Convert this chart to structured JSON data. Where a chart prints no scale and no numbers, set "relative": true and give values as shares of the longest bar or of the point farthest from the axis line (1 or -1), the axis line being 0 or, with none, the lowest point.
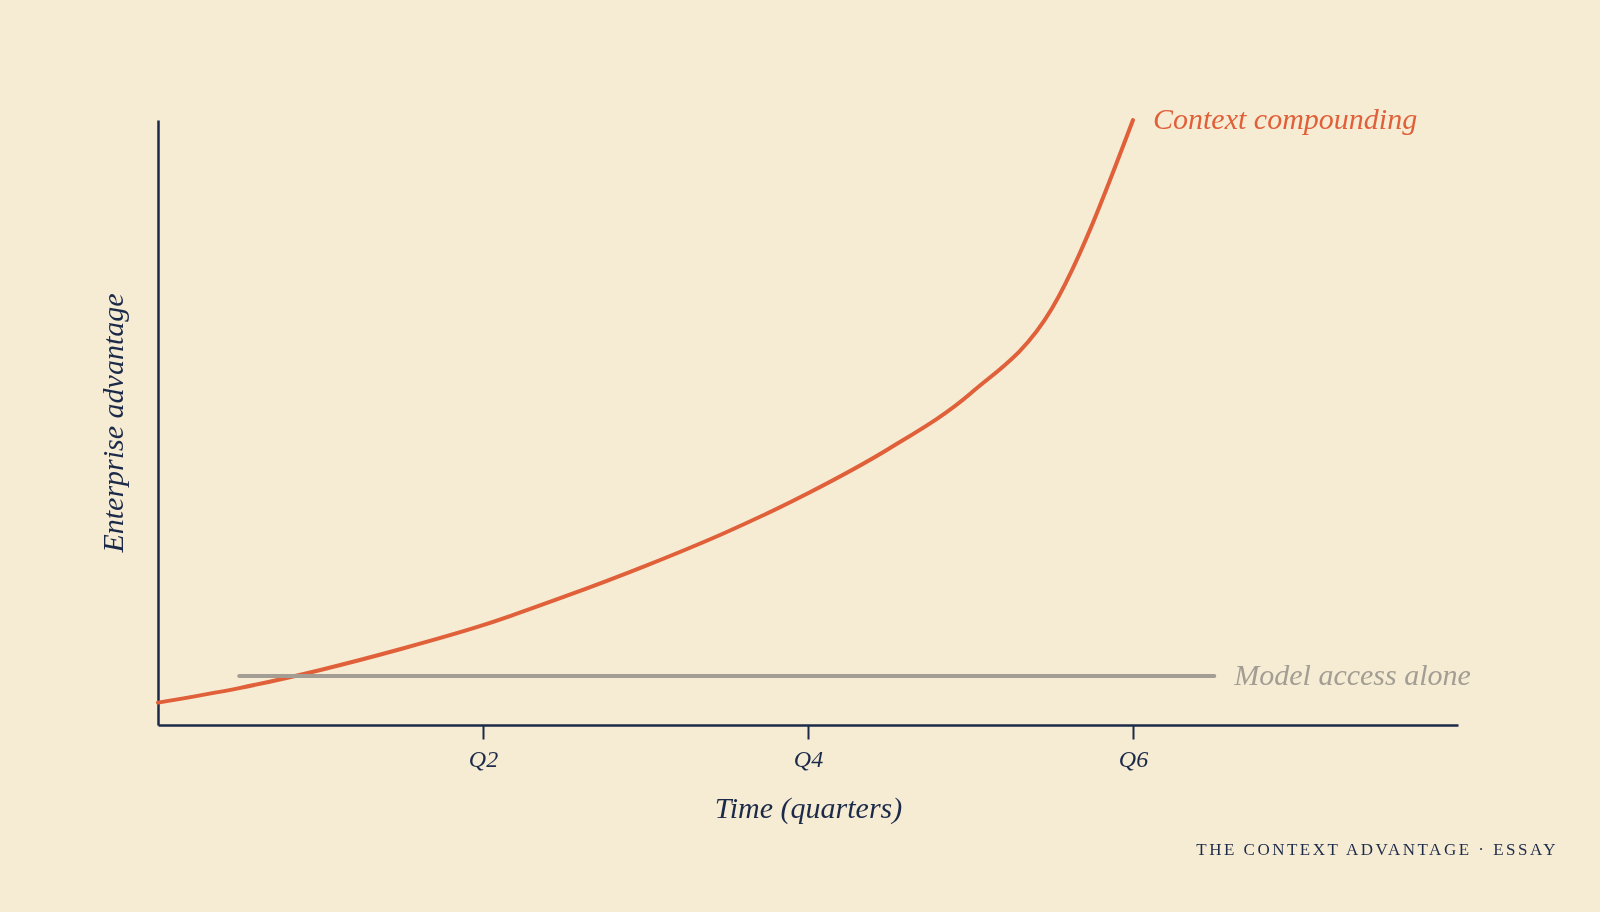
{
  "chart_data": {
    "type": "line",
    "xlabel": "Time (quarters)",
    "ylabel": "Enterprise advantage",
    "relative": true,
    "categories": [
      null,
      null,
      null,
      null,
      "Q2",
      null,
      null,
      null,
      "Q4",
      null,
      null,
      null,
      "Q6",
      null,
      null,
      null,
      null
    ],
    "series": [
      {
        "name": "Context compounding",
        "color": "#e0603a",
        "values": [
          0.037,
          0.061,
          0.091,
          0.126,
          0.165,
          0.212,
          0.263,
          0.319,
          0.383,
          0.457,
          0.548,
          0.688,
          1,
          null,
          null,
          null,
          null
        ]
      },
      {
        "name": "Model access alone",
        "color": "#a39d93",
        "values": [
          null,
          0.081,
          0.081,
          0.081,
          0.081,
          0.081,
          0.081,
          0.081,
          0.081,
          0.081,
          0.081,
          0.081,
          0.081,
          0.081,
          null,
          null,
          null
        ]
      }
    ],
    "grid": false,
    "legend": false,
    "annotations": [
      "THE CONTEXT ADVANTAGE · ESSAY"
    ]
  }
}
